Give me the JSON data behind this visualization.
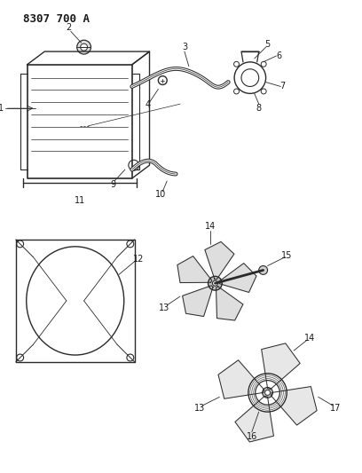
{
  "title": "8307 700 A",
  "bg_color": "#ffffff",
  "line_color": "#2a2a2a",
  "text_color": "#1a1a1a",
  "title_fontsize": 9,
  "label_fontsize": 7,
  "figsize": [
    4.08,
    5.33
  ],
  "dpi": 100
}
